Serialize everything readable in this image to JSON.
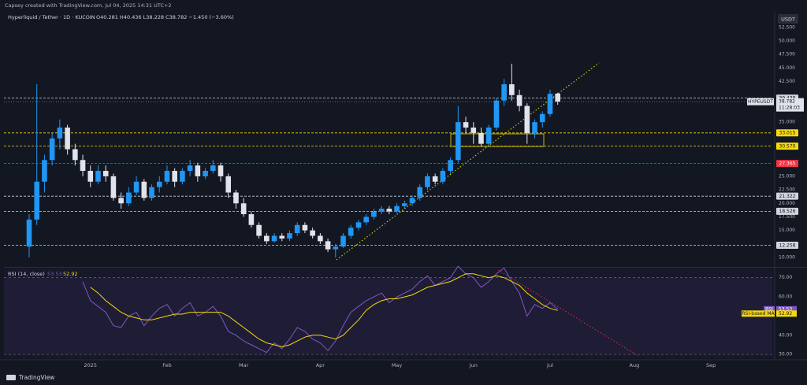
{
  "header": {
    "attribution": "Capsey created with TradingView.com, Jul 04, 2025 14:31 UTC+2",
    "currency": "USDT",
    "brand": "TradingView"
  },
  "chart_data": [
    {
      "type": "candlestick",
      "title": "Hyperliquid / Tether · 1D · KUCOIN",
      "ohlc_legend": "O40.281 H40.436 L38.228 C38.782 −1.450 (−3.60%)",
      "symbol": "HYPEUSDT",
      "countdown": "11:28:03",
      "up_color": "#2196f3",
      "down_color": "#e0e3eb",
      "categories": [
        null,
        null,
        null,
        null,
        null,
        null,
        null,
        null,
        "2025",
        null,
        null,
        null,
        null,
        null,
        null,
        null,
        null,
        null,
        "Feb",
        null,
        null,
        null,
        null,
        null,
        null,
        null,
        null,
        null,
        "Mar",
        null,
        null,
        null,
        null,
        null,
        null,
        null,
        null,
        null,
        "Apr",
        null,
        null,
        null,
        null,
        null,
        null,
        null,
        null,
        null,
        "May",
        null,
        null,
        null,
        null,
        null,
        null,
        null,
        null,
        null,
        "Jun",
        null,
        null,
        null,
        null,
        null,
        null,
        null,
        null,
        null,
        "Jul",
        null,
        null,
        null,
        null,
        null,
        null,
        null,
        null,
        null,
        null,
        "Aug",
        null,
        null,
        null,
        null,
        null,
        null,
        null,
        null,
        null,
        "Sep",
        null,
        null,
        null,
        null,
        null,
        null,
        null,
        null
      ],
      "open": [
        12,
        17,
        24,
        28,
        32,
        34,
        30,
        28,
        26,
        24,
        26,
        25,
        21,
        20,
        22,
        24,
        21,
        23,
        24,
        26,
        24,
        26,
        27,
        25,
        26,
        27,
        25,
        22,
        20,
        18,
        16,
        14,
        13,
        14,
        13.5,
        14.5,
        16,
        15,
        14,
        13,
        11.5,
        12,
        14,
        15.5,
        16.5,
        17.5,
        18.5,
        19,
        18.5,
        19.5,
        20,
        21,
        23,
        25,
        24,
        26,
        28,
        35,
        34,
        33,
        31,
        34,
        39,
        42,
        40,
        38,
        33,
        35,
        36.5,
        40.281,
        null,
        null,
        null,
        null,
        null,
        null,
        null,
        null,
        null,
        null,
        null,
        null,
        null,
        null,
        null,
        null,
        null,
        null,
        null,
        null,
        null,
        null,
        null,
        null,
        null,
        null,
        null,
        null
      ],
      "high": [
        18,
        42,
        29,
        33,
        35.5,
        34.5,
        31,
        29,
        27,
        27,
        27,
        25.5,
        22,
        23,
        25,
        24.5,
        23.5,
        25,
        27,
        26.5,
        26.5,
        28,
        27.5,
        26.5,
        28,
        27.5,
        25.5,
        22.5,
        21,
        18.5,
        16.5,
        14.5,
        14.5,
        14.5,
        15,
        16.5,
        16.5,
        15.5,
        14.5,
        13.5,
        12.5,
        14.5,
        16,
        17,
        18,
        19,
        19.5,
        19.5,
        20,
        20.5,
        21.5,
        23.5,
        25.5,
        25.5,
        26.5,
        28.5,
        38,
        36,
        35,
        34,
        34.5,
        39.5,
        43,
        45.8,
        41,
        38.5,
        35.5,
        37,
        41,
        40.436,
        null,
        null,
        null,
        null,
        null,
        null,
        null,
        null,
        null,
        null,
        null,
        null,
        null,
        null,
        null,
        null,
        null,
        null,
        null,
        null,
        null,
        null,
        null,
        null,
        null,
        null,
        null,
        null
      ],
      "low": [
        10,
        16,
        22,
        27,
        30,
        29,
        27,
        25,
        23,
        23.5,
        24,
        20.5,
        19,
        19.5,
        21.5,
        20.5,
        20.5,
        22,
        23.5,
        23,
        23.5,
        25,
        24,
        24.5,
        25.5,
        24,
        21,
        19,
        17.5,
        15.5,
        13.5,
        12.5,
        12.8,
        13,
        13,
        14,
        14.5,
        13.5,
        12.5,
        11,
        10,
        11.8,
        13.5,
        15,
        16,
        17,
        18,
        18,
        18.2,
        19,
        19.5,
        20.5,
        22.5,
        23.5,
        23.5,
        25.5,
        27.5,
        33,
        31,
        30.5,
        30.5,
        33.5,
        38,
        39,
        37,
        31,
        32,
        34,
        36,
        38.228,
        null,
        null,
        null,
        null,
        null,
        null,
        null,
        null,
        null,
        null,
        null,
        null,
        null,
        null,
        null,
        null,
        null,
        null,
        null,
        null,
        null,
        null,
        null,
        null,
        null,
        null,
        null,
        null
      ],
      "close": [
        17,
        24,
        28,
        32,
        34,
        30,
        28,
        26,
        24,
        26,
        25,
        21,
        20,
        22,
        24,
        21,
        23,
        24,
        26,
        24,
        26,
        27,
        25,
        26,
        27,
        25,
        22,
        20,
        18,
        16,
        14,
        13,
        14,
        13.5,
        14.5,
        16,
        15,
        14,
        13,
        11.5,
        12,
        14,
        15.5,
        16.5,
        17.5,
        18.5,
        19,
        18.5,
        19.5,
        20,
        21,
        23,
        25,
        24,
        26,
        28,
        35,
        34,
        33,
        31,
        34,
        39,
        42,
        40,
        38,
        33,
        35,
        36.5,
        40.232,
        38.782,
        null,
        null,
        null,
        null,
        null,
        null,
        null,
        null,
        null,
        null,
        null,
        null,
        null,
        null,
        null,
        null,
        null,
        null,
        null,
        null,
        null,
        null,
        null,
        null,
        null,
        null,
        null,
        null
      ],
      "ylim": [
        8.4,
        55.1
      ],
      "yticks": [
        {
          "value": 10,
          "label": "10.000"
        },
        {
          "value": 15,
          "label": "15.000"
        },
        {
          "value": 17.5,
          "label": "17.500"
        },
        {
          "value": 20,
          "label": "20.000"
        },
        {
          "value": 22.5,
          "label": "22.500"
        },
        {
          "value": 25,
          "label": "25.000"
        },
        {
          "value": 35,
          "label": "35.000"
        },
        {
          "value": 42.5,
          "label": "42.500"
        },
        {
          "value": 45,
          "label": "45.000"
        },
        {
          "value": 47.5,
          "label": "47.500"
        },
        {
          "value": 50,
          "label": "50.000"
        },
        {
          "value": 52.5,
          "label": "52.500"
        }
      ],
      "grid": false,
      "levels": [
        {
          "value": 39.438,
          "label": "39.438",
          "color": "#d1d4dc"
        },
        {
          "value": 33.015,
          "label": "33.015",
          "color": "#f5d90a"
        },
        {
          "value": 30.57,
          "label": "30.570",
          "color": "#f5d90a"
        },
        {
          "value": 27.365,
          "label": "27.365",
          "color": "#f23645"
        },
        {
          "value": 21.322,
          "label": "21.322",
          "color": "#d1d4dc"
        },
        {
          "value": 18.526,
          "label": "18.526",
          "color": "#d1d4dc"
        },
        {
          "value": 12.258,
          "label": "12.258",
          "color": "#d1d4dc"
        }
      ]
    },
    {
      "type": "line",
      "title": "RSI (14, close)",
      "series": [
        {
          "name": "RSI",
          "color": "#7e57c2",
          "values": [
            null,
            null,
            null,
            null,
            null,
            null,
            null,
            68,
            58,
            55,
            52,
            45,
            44,
            50,
            52,
            45,
            50,
            54,
            56,
            50,
            54,
            57,
            50,
            52,
            55,
            50,
            42,
            40,
            37,
            35,
            33,
            31,
            36,
            33,
            38,
            44,
            42,
            38,
            36,
            32,
            37,
            45,
            52,
            55,
            58,
            60,
            62,
            57,
            60,
            62,
            64,
            68,
            71,
            66,
            68,
            70,
            76,
            72,
            70,
            65,
            68,
            72,
            75,
            68,
            62,
            50,
            56,
            54,
            57,
            53.53,
            null,
            null,
            null,
            null,
            null,
            null,
            null,
            null,
            null,
            null,
            null,
            null,
            null,
            null,
            null,
            null,
            null,
            null,
            null,
            null,
            null,
            null,
            null,
            null,
            null,
            null,
            null,
            null
          ]
        },
        {
          "name": "RSI-based MA",
          "color": "#f5d90a",
          "values": [
            null,
            null,
            null,
            null,
            null,
            null,
            null,
            null,
            65,
            62,
            58,
            55,
            52,
            50,
            49,
            48,
            48,
            49,
            50,
            51,
            51,
            52,
            52,
            52,
            52,
            52,
            50,
            47,
            44,
            41,
            38,
            36,
            35,
            34,
            35,
            37,
            39,
            40,
            40,
            39,
            38,
            40,
            44,
            48,
            53,
            56,
            58,
            59,
            59,
            60,
            61,
            63,
            65,
            66,
            67,
            68,
            70,
            72,
            72,
            71,
            70,
            71,
            70,
            68,
            66,
            62,
            59,
            56,
            54,
            52.92,
            null,
            null,
            null,
            null,
            null,
            null,
            null,
            null,
            null,
            null,
            null,
            null,
            null,
            null,
            null,
            null,
            null,
            null,
            null,
            null,
            null,
            null,
            null,
            null,
            null,
            null,
            null,
            null
          ]
        }
      ],
      "ylim": [
        28,
        74.4
      ],
      "yticks": [
        {
          "value": 30,
          "label": "30.00"
        },
        {
          "value": 40,
          "label": "40.00"
        },
        {
          "value": 60,
          "label": "60.00"
        },
        {
          "value": 70,
          "label": "70.00"
        }
      ]
    }
  ]
}
